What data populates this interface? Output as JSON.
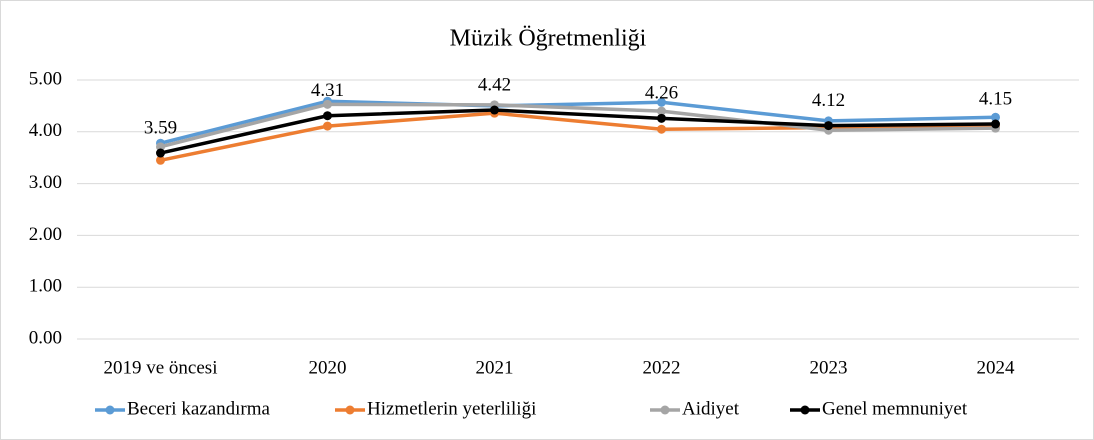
{
  "chart_data": {
    "type": "line",
    "title": "Müzik Öğretmenliği",
    "categories": [
      "2019 ve öncesi",
      "2020",
      "2021",
      "2022",
      "2023",
      "2024"
    ],
    "series": [
      {
        "name": "Beceri kazandırma",
        "color": "#5b9bd5",
        "values": [
          3.78,
          4.59,
          4.5,
          4.57,
          4.21,
          4.28
        ]
      },
      {
        "name": "Hizmetlerin yeterliliği",
        "color": "#ed7d31",
        "values": [
          3.45,
          4.11,
          4.36,
          4.05,
          4.08,
          4.1
        ]
      },
      {
        "name": "Aidiyet",
        "color": "#a5a5a5",
        "values": [
          3.71,
          4.53,
          4.52,
          4.4,
          4.03,
          4.07
        ]
      },
      {
        "name": "Genel memnuniyet",
        "color": "#000000",
        "values": [
          3.59,
          4.31,
          4.42,
          4.26,
          4.12,
          4.15
        ],
        "data_labels": true
      }
    ],
    "ylim": [
      0,
      5
    ],
    "yticks": [
      {
        "value": 0,
        "label": "0.00"
      },
      {
        "value": 1,
        "label": "1.00"
      },
      {
        "value": 2,
        "label": "2.00"
      },
      {
        "value": 3,
        "label": "3.00"
      },
      {
        "value": 4,
        "label": "4.00"
      },
      {
        "value": 5,
        "label": "5.00"
      }
    ],
    "grid": true,
    "legend": "bottom"
  }
}
